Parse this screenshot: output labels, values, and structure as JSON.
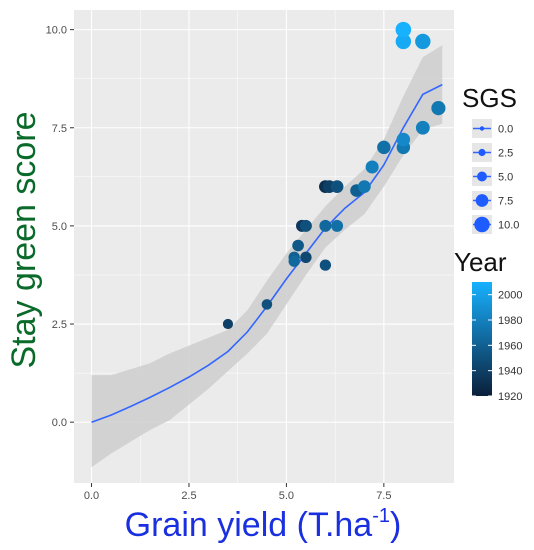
{
  "chart_data": {
    "type": "scatter",
    "xlabel": "Grain yield (T.ha",
    "xlabel_sup": "-1",
    "xlabel_end": ")",
    "ylabel": "Stay green score",
    "xlim": [
      -0.45,
      9.3
    ],
    "ylim": [
      -1.55,
      10.5
    ],
    "x_ticks": [
      0.0,
      2.5,
      5.0,
      7.5
    ],
    "x_tick_labels": [
      "0.0",
      "2.5",
      "5.0",
      "7.5"
    ],
    "y_ticks": [
      0.0,
      2.5,
      5.0,
      7.5,
      10.0
    ],
    "y_tick_labels": [
      "0.0",
      "2.5",
      "5.0",
      "7.5",
      "10.0"
    ],
    "grid": true,
    "points": [
      {
        "x": 3.5,
        "y": 2.5,
        "year": 1940
      },
      {
        "x": 4.5,
        "y": 3.0,
        "year": 1950
      },
      {
        "x": 5.2,
        "y": 4.2,
        "year": 1960
      },
      {
        "x": 5.3,
        "y": 4.5,
        "year": 1955
      },
      {
        "x": 5.2,
        "y": 4.1,
        "year": 1965
      },
      {
        "x": 5.5,
        "y": 4.2,
        "year": 1945
      },
      {
        "x": 5.4,
        "y": 5.0,
        "year": 1935
      },
      {
        "x": 5.5,
        "y": 5.0,
        "year": 1950
      },
      {
        "x": 6.0,
        "y": 4.0,
        "year": 1950
      },
      {
        "x": 6.0,
        "y": 5.0,
        "year": 1965
      },
      {
        "x": 6.3,
        "y": 5.0,
        "year": 1970
      },
      {
        "x": 6.0,
        "y": 6.0,
        "year": 1930
      },
      {
        "x": 6.1,
        "y": 6.0,
        "year": 1940
      },
      {
        "x": 6.3,
        "y": 6.0,
        "year": 1950
      },
      {
        "x": 6.8,
        "y": 5.9,
        "year": 1960
      },
      {
        "x": 7.0,
        "y": 6.0,
        "year": 1975
      },
      {
        "x": 7.2,
        "y": 6.5,
        "year": 1980
      },
      {
        "x": 7.5,
        "y": 7.0,
        "year": 1970
      },
      {
        "x": 8.0,
        "y": 7.0,
        "year": 1975
      },
      {
        "x": 8.0,
        "y": 7.2,
        "year": 1985
      },
      {
        "x": 8.5,
        "y": 7.5,
        "year": 1980
      },
      {
        "x": 8.9,
        "y": 8.0,
        "year": 1975
      },
      {
        "x": 8.0,
        "y": 9.7,
        "year": 2005
      },
      {
        "x": 8.0,
        "y": 10.0,
        "year": 2010
      },
      {
        "x": 8.5,
        "y": 9.7,
        "year": 1995
      }
    ],
    "trend": {
      "name": "SGS",
      "x": [
        0,
        0.5,
        1,
        1.5,
        2,
        2.5,
        3,
        3.5,
        4,
        4.5,
        5,
        5.5,
        6,
        6.5,
        7,
        7.5,
        8,
        8.5,
        9
      ],
      "y": [
        0.0,
        0.18,
        0.4,
        0.63,
        0.88,
        1.15,
        1.45,
        1.8,
        2.3,
        2.95,
        3.65,
        4.3,
        4.95,
        5.45,
        5.85,
        6.55,
        7.5,
        8.35,
        8.6
      ],
      "lower": [
        -1.15,
        -0.8,
        -0.5,
        -0.2,
        0.05,
        0.45,
        0.85,
        1.3,
        1.75,
        2.25,
        3.0,
        3.75,
        4.45,
        4.9,
        5.3,
        6.0,
        6.8,
        7.45,
        7.6
      ],
      "upper": [
        1.2,
        1.2,
        1.35,
        1.5,
        1.75,
        1.95,
        2.15,
        2.35,
        2.85,
        3.6,
        4.3,
        4.9,
        5.5,
        6.0,
        6.45,
        7.2,
        8.3,
        9.3,
        9.6
      ]
    },
    "legend_size": {
      "title": "SGS",
      "labels": [
        "0.0",
        "2.5",
        "5.0",
        "7.5",
        "10.0"
      ]
    },
    "legend_color": {
      "title": "Year",
      "labels": [
        "2000",
        "1980",
        "1960",
        "1940",
        "1920"
      ],
      "min": 1920,
      "max": 2010
    },
    "colors": {
      "panel": "#ebebeb",
      "grid": "#ffffff",
      "band": "#cfcfcf",
      "trend_line": "#3366ff",
      "ylabel": "#0a6a2a",
      "xlabel": "#1a2fe0",
      "year_low": "#0b1f3a",
      "year_high": "#17b1ff",
      "size_legend_fill": "#1f5cff"
    }
  }
}
